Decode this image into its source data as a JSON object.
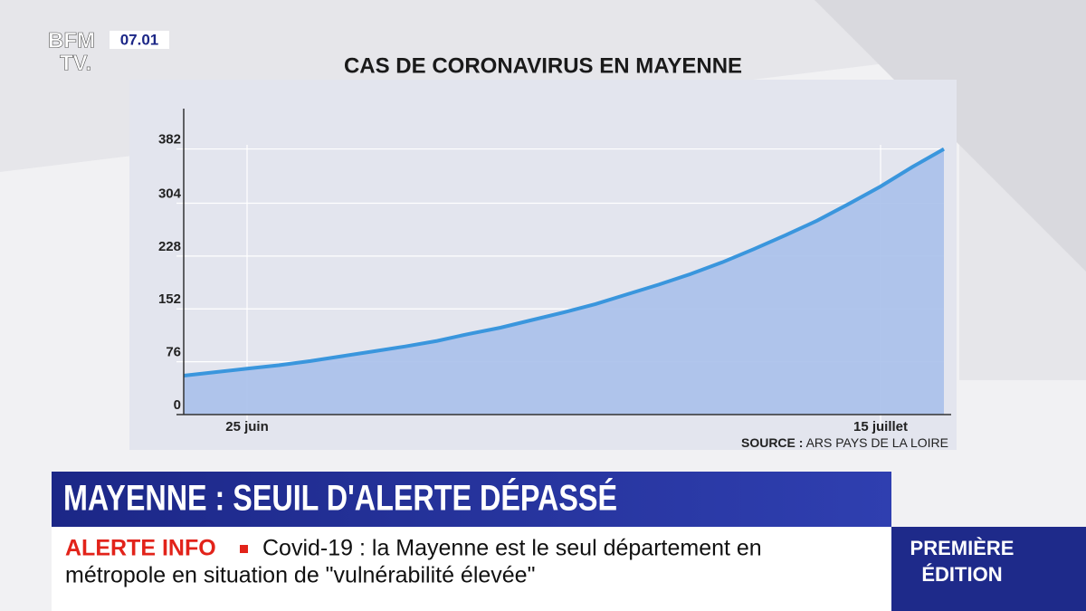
{
  "overlay": {
    "logo_top": "BFM",
    "logo_bottom": "TV.",
    "time": "07.01",
    "headline": "MAYENNE : SEUIL D'ALERTE DÉPASSÉ",
    "ticker_label": "ALERTE INFO",
    "ticker_lines": [
      "Covid-19 : la Mayenne est le seul département en",
      "métropole en situation de \"vulnérabilité élevée\""
    ],
    "program": [
      "PREMIÈRE",
      "ÉDITION"
    ]
  },
  "chart_data": {
    "type": "area",
    "title": "CAS DE CORONAVIRUS EN MAYENNE",
    "source_label": "SOURCE :",
    "source": "ARS PAYS DE LA LOIRE",
    "categories": [
      null,
      null,
      "25 juin",
      null,
      null,
      null,
      null,
      null,
      null,
      null,
      null,
      null,
      null,
      null,
      null,
      null,
      null,
      null,
      null,
      null,
      null,
      null,
      "15 juillet",
      null,
      null
    ],
    "values": [
      56,
      61,
      66,
      71,
      77,
      84,
      91,
      98,
      106,
      116,
      125,
      136,
      147,
      159,
      173,
      187,
      202,
      219,
      238,
      258,
      279,
      303,
      328,
      356,
      382
    ],
    "color": "#3a96dd",
    "fill": "#a9c0ea",
    "ylim": [
      0,
      440
    ],
    "yticks": [
      0,
      76,
      152,
      228,
      304,
      382
    ],
    "grid": true
  }
}
